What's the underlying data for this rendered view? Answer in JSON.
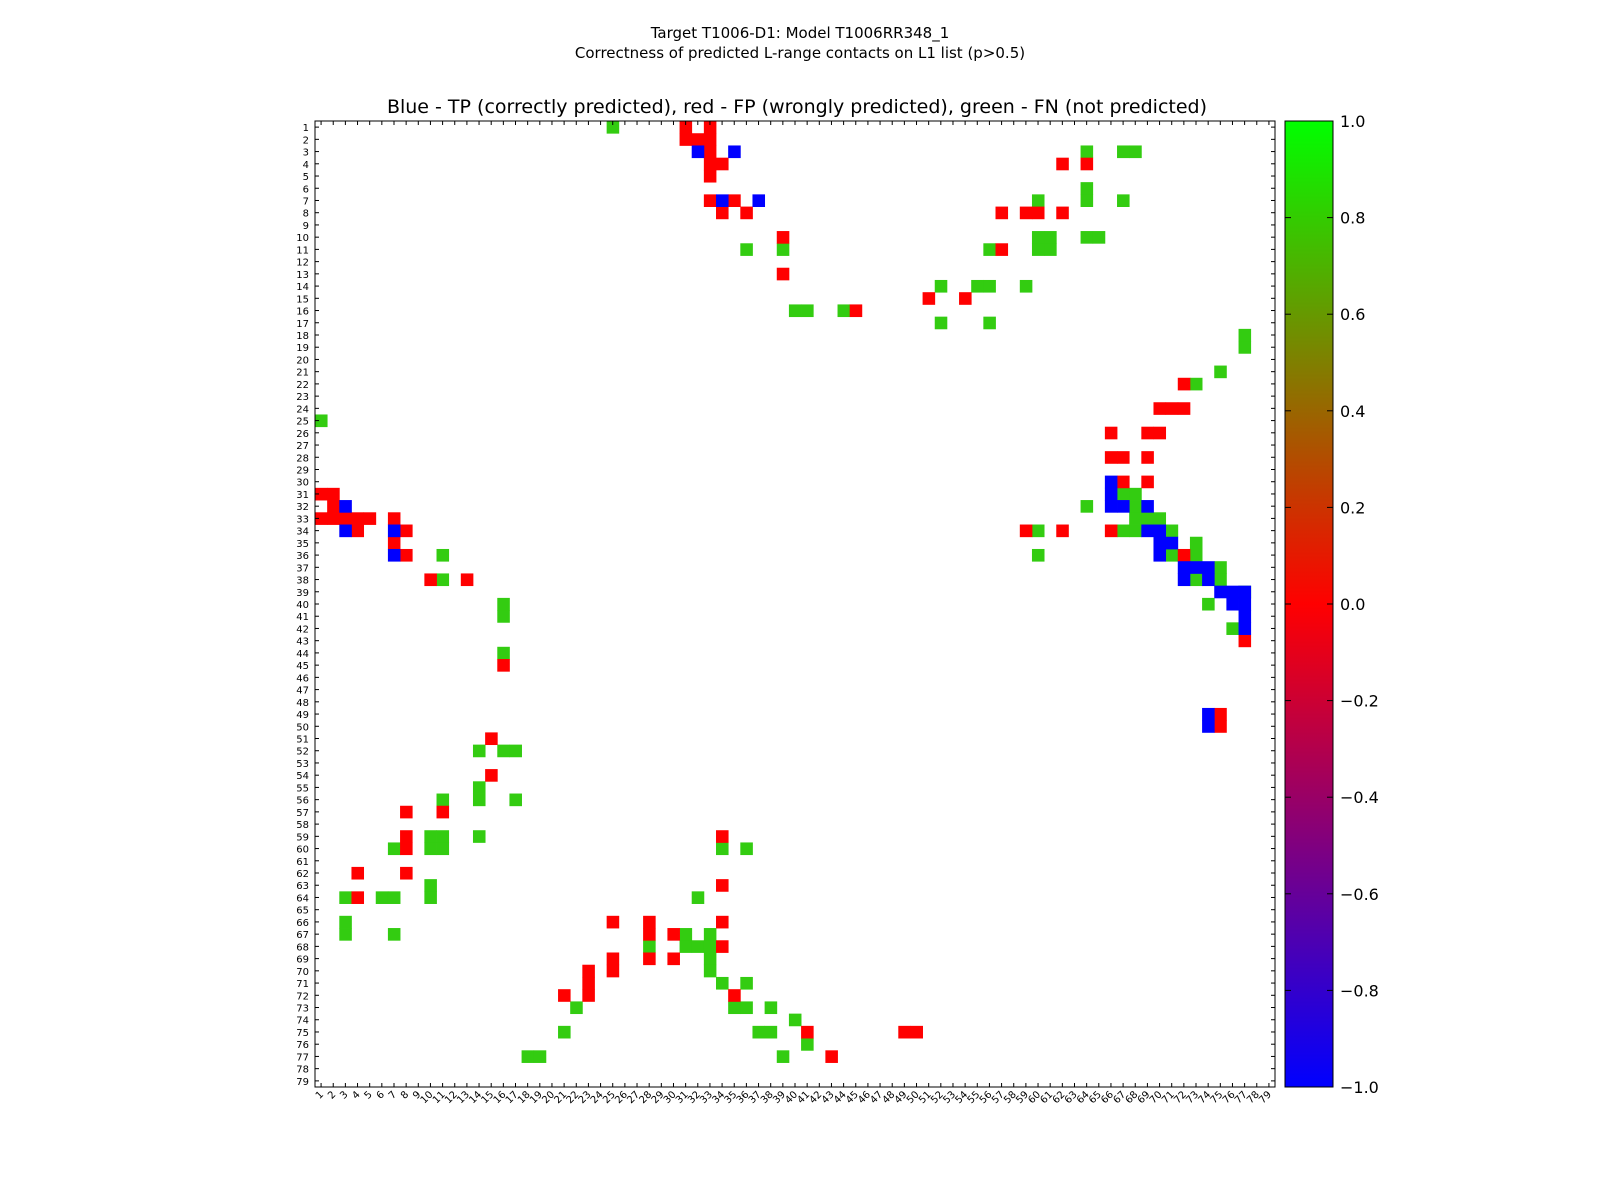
{
  "chart_data": {
    "type": "heatmap",
    "title_line1": "Target T1006-D1: Model T1006RR348_1",
    "title_line2": "Correctness of predicted L-range contacts on L1 list (p>0.5)",
    "subtitle": "Blue - TP (correctly predicted), red - FP (wrongly predicted), green - FN (not predicted)",
    "xlabel": "",
    "ylabel": "",
    "n": 79,
    "x_range": [
      1,
      79
    ],
    "y_range": [
      1,
      79
    ],
    "colorbar": {
      "range": [
        -1.0,
        1.0
      ],
      "ticks": [
        "1.0",
        "0.8",
        "0.6",
        "0.4",
        "0.2",
        "0.0",
        "−0.2",
        "−0.4",
        "−0.6",
        "−0.8",
        "−1.0"
      ],
      "stops": [
        {
          "value": -1.0,
          "color": "#0000ff"
        },
        {
          "value": 0.0,
          "color": "#ff0000"
        },
        {
          "value": 1.0,
          "color": "#00ff00"
        }
      ]
    },
    "legend": [
      {
        "label": "TP",
        "value": -1,
        "color": "#0000ff"
      },
      {
        "label": "FP",
        "value": 0,
        "color": "#ff0000"
      },
      {
        "label": "FN",
        "value": 0.8,
        "color": "#33cc11"
      }
    ],
    "colors": {
      "TP": "#0000ff",
      "FP": "#ff0000",
      "FN": "#33cc11"
    },
    "cells": {
      "TP": [
        [
          3,
          32
        ],
        [
          7,
          34
        ],
        [
          3,
          35
        ],
        [
          7,
          37
        ],
        [
          30,
          66
        ],
        [
          31,
          66
        ],
        [
          32,
          66
        ],
        [
          32,
          67
        ],
        [
          32,
          69
        ],
        [
          34,
          70
        ],
        [
          34,
          69
        ],
        [
          35,
          70
        ],
        [
          36,
          70
        ],
        [
          35,
          71
        ],
        [
          37,
          72
        ],
        [
          37,
          73
        ],
        [
          37,
          74
        ],
        [
          38,
          72
        ],
        [
          38,
          74
        ],
        [
          39,
          75
        ],
        [
          39,
          76
        ],
        [
          39,
          77
        ],
        [
          40,
          76
        ],
        [
          40,
          77
        ],
        [
          41,
          77
        ],
        [
          42,
          77
        ],
        [
          49,
          74
        ],
        [
          50,
          74
        ],
        [
          32,
          3
        ],
        [
          34,
          3
        ],
        [
          34,
          7
        ],
        [
          36,
          7
        ]
      ],
      "FP": [
        [
          1,
          31
        ],
        [
          2,
          31
        ],
        [
          2,
          32
        ],
        [
          2,
          33
        ],
        [
          3,
          33
        ],
        [
          4,
          33
        ],
        [
          4,
          34
        ],
        [
          1,
          33
        ],
        [
          5,
          33
        ],
        [
          7,
          33
        ],
        [
          7,
          35
        ],
        [
          8,
          34
        ],
        [
          8,
          36
        ],
        [
          4,
          62
        ],
        [
          4,
          64
        ],
        [
          8,
          57
        ],
        [
          8,
          59
        ],
        [
          8,
          60
        ],
        [
          8,
          62
        ],
        [
          10,
          39
        ],
        [
          11,
          57
        ],
        [
          13,
          39
        ],
        [
          15,
          51
        ],
        [
          15,
          54
        ],
        [
          16,
          45
        ],
        [
          22,
          72
        ],
        [
          24,
          70
        ],
        [
          24,
          71
        ],
        [
          24,
          72
        ],
        [
          26,
          66
        ],
        [
          26,
          69
        ],
        [
          26,
          70
        ],
        [
          28,
          66
        ],
        [
          28,
          67
        ],
        [
          28,
          69
        ],
        [
          30,
          67
        ],
        [
          30,
          69
        ],
        [
          34,
          59
        ],
        [
          34,
          62
        ],
        [
          34,
          66
        ],
        [
          36,
          72
        ],
        [
          49,
          75
        ],
        [
          50,
          75
        ],
        [
          43,
          77
        ],
        [
          31,
          1
        ],
        [
          31,
          2
        ],
        [
          32,
          2
        ],
        [
          33,
          1
        ],
        [
          33,
          2
        ],
        [
          33,
          3
        ],
        [
          33,
          4
        ],
        [
          33,
          5
        ],
        [
          33,
          7
        ],
        [
          34,
          4
        ],
        [
          34,
          8
        ],
        [
          35,
          7
        ],
        [
          36,
          8
        ],
        [
          38,
          10
        ],
        [
          38,
          13
        ],
        [
          45,
          16
        ],
        [
          51,
          15
        ],
        [
          54,
          15
        ],
        [
          57,
          8
        ],
        [
          57,
          11
        ],
        [
          59,
          8
        ],
        [
          59,
          34
        ],
        [
          60,
          8
        ],
        [
          62,
          4
        ],
        [
          62,
          8
        ],
        [
          63,
          34
        ],
        [
          64,
          4
        ],
        [
          66,
          25
        ],
        [
          66,
          28
        ],
        [
          66,
          34
        ],
        [
          67,
          28
        ],
        [
          67,
          30
        ],
        [
          68,
          34
        ],
        [
          69,
          25
        ],
        [
          69,
          28
        ],
        [
          69,
          30
        ],
        [
          70,
          23
        ],
        [
          70,
          25
        ],
        [
          71,
          23
        ],
        [
          72,
          21
        ],
        [
          72,
          23
        ],
        [
          72,
          35
        ],
        [
          75,
          41
        ],
        [
          77,
          43
        ],
        [
          75,
          49
        ],
        [
          75,
          50
        ]
      ],
      "FN": [
        [
          1,
          25
        ],
        [
          3,
          64
        ],
        [
          3,
          67
        ],
        [
          3,
          68
        ],
        [
          6,
          64
        ],
        [
          7,
          60
        ],
        [
          7,
          64
        ],
        [
          7,
          67
        ],
        [
          10,
          60
        ],
        [
          10,
          61
        ],
        [
          10,
          64
        ],
        [
          10,
          65
        ],
        [
          11,
          36
        ],
        [
          11,
          39
        ],
        [
          11,
          56
        ],
        [
          11,
          60
        ],
        [
          11,
          61
        ],
        [
          14,
          52
        ],
        [
          14,
          55
        ],
        [
          14,
          56
        ],
        [
          14,
          59
        ],
        [
          16,
          40
        ],
        [
          16,
          41
        ],
        [
          16,
          44
        ],
        [
          17,
          52
        ],
        [
          17,
          56
        ],
        [
          18,
          77
        ],
        [
          19,
          77
        ],
        [
          21,
          75
        ],
        [
          22,
          73
        ],
        [
          25,
          1
        ],
        [
          31,
          67
        ],
        [
          31,
          68
        ],
        [
          32,
          64
        ],
        [
          32,
          68
        ],
        [
          33,
          68
        ],
        [
          33,
          69
        ],
        [
          33,
          70
        ],
        [
          34,
          60
        ],
        [
          34,
          67
        ],
        [
          34,
          68
        ],
        [
          34,
          71
        ],
        [
          35,
          73
        ],
        [
          36,
          60
        ],
        [
          36,
          71
        ],
        [
          36,
          73
        ],
        [
          37,
          75
        ],
        [
          38,
          73
        ],
        [
          38,
          75
        ],
        [
          39,
          77
        ],
        [
          40,
          74
        ],
        [
          42,
          76
        ],
        [
          36,
          11
        ],
        [
          38,
          11
        ],
        [
          40,
          16
        ],
        [
          41,
          16
        ],
        [
          44,
          16
        ],
        [
          52,
          14
        ],
        [
          52,
          16
        ],
        [
          52,
          17
        ],
        [
          55,
          14
        ],
        [
          56,
          11
        ],
        [
          56,
          14
        ],
        [
          56,
          17
        ],
        [
          59,
          10
        ],
        [
          59,
          11
        ],
        [
          59,
          14
        ],
        [
          60,
          7
        ],
        [
          60,
          10
        ],
        [
          60,
          11
        ],
        [
          60,
          34
        ],
        [
          60,
          36
        ],
        [
          63,
          10
        ],
        [
          64,
          3
        ],
        [
          64,
          6
        ],
        [
          64,
          7
        ],
        [
          64,
          10
        ],
        [
          64,
          32
        ],
        [
          66,
          3
        ],
        [
          67,
          3
        ],
        [
          67,
          7
        ],
        [
          67,
          31
        ],
        [
          67,
          33
        ],
        [
          68,
          28
        ],
        [
          68,
          31
        ],
        [
          68,
          32
        ],
        [
          68,
          33
        ],
        [
          69,
          33
        ],
        [
          70,
          33
        ],
        [
          71,
          34
        ],
        [
          71,
          36
        ],
        [
          73,
          22
        ],
        [
          73,
          35
        ],
        [
          73,
          36
        ],
        [
          73,
          38
        ],
        [
          74,
          40
        ],
        [
          75,
          21
        ],
        [
          75,
          37
        ],
        [
          75,
          38
        ],
        [
          76,
          41
        ],
        [
          77,
          18
        ],
        [
          77,
          19
        ],
        [
          77,
          39
        ]
      ]
    }
  }
}
